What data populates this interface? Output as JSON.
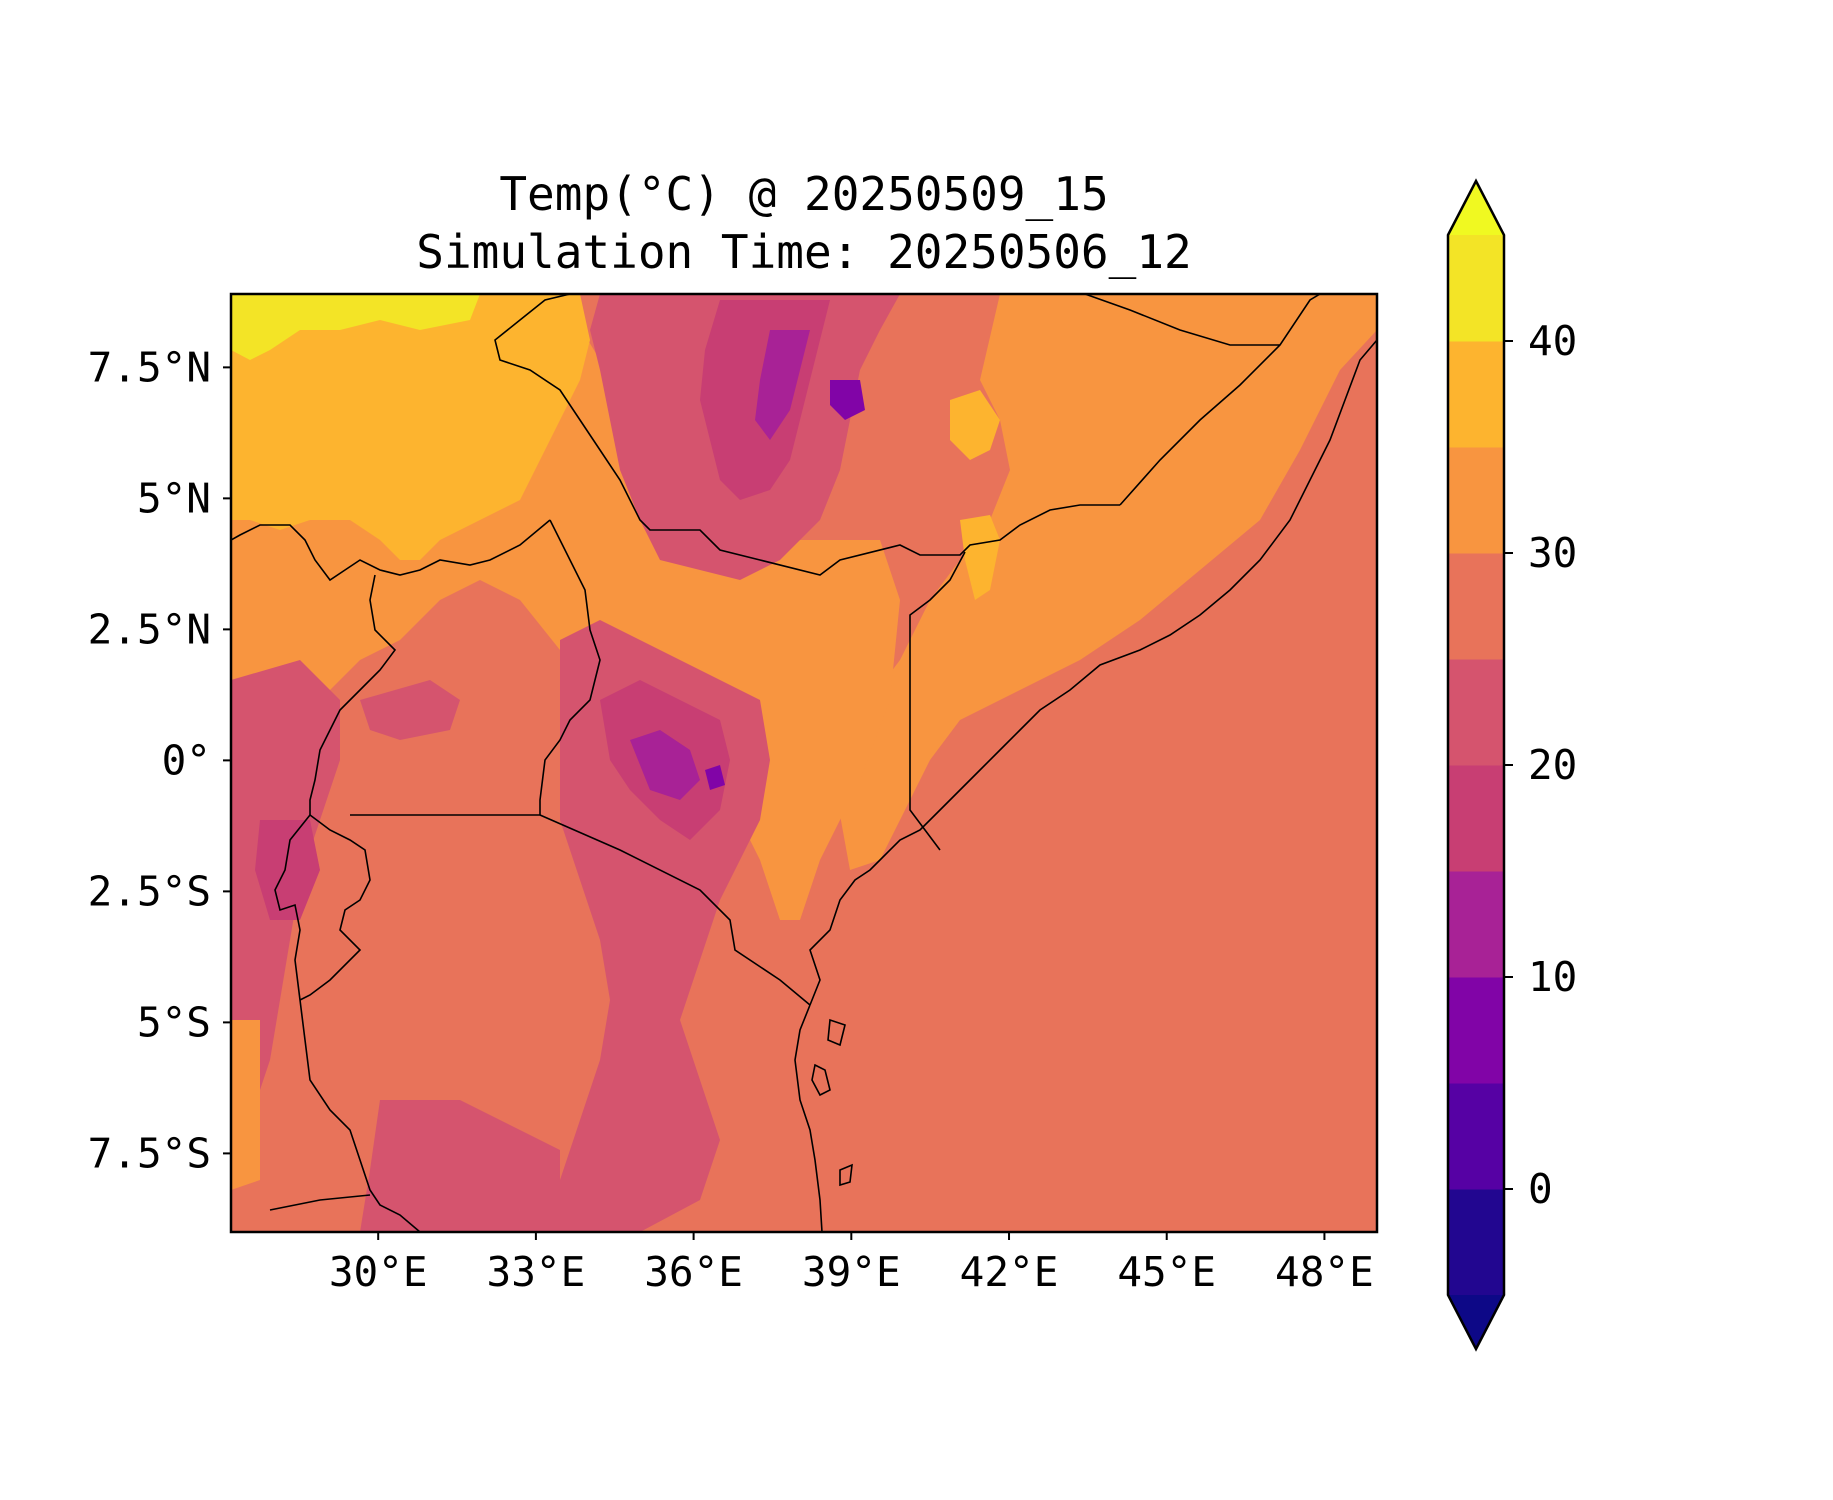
{
  "title": {
    "line1": "Temp(°C) @ 20250509_15",
    "line2": "Simulation Time: 20250506_12"
  },
  "map": {
    "lon_range": [
      27.2,
      49.0
    ],
    "lat_range": [
      -9.0,
      8.9
    ],
    "lon_ticks": [
      "30°E",
      "33°E",
      "36°E",
      "39°E",
      "42°E",
      "45°E",
      "48°E"
    ],
    "lat_ticks": [
      "7.5°N",
      "5°N",
      "2.5°N",
      "0°",
      "2.5°S",
      "5°S",
      "7.5°S"
    ],
    "lon_tick_values": [
      30,
      33,
      36,
      39,
      42,
      45,
      48
    ],
    "lat_tick_values": [
      7.5,
      5,
      2.5,
      0,
      -2.5,
      -5,
      -7.5
    ],
    "background_level_color": "#e8735a"
  },
  "colorbar": {
    "tick_labels": [
      "0",
      "10",
      "20",
      "30",
      "40"
    ],
    "tick_values": [
      0,
      10,
      20,
      30,
      40
    ],
    "range": [
      -5,
      45
    ],
    "extend": "both",
    "under_color": "#0d0887",
    "over_color": "#f0f921",
    "level_colors": [
      "#220690",
      "#5601a4",
      "#8104a7",
      "#a82296",
      "#c83e73",
      "#d5546e",
      "#e8735a",
      "#f89540",
      "#fdb42f",
      "#f3e426"
    ]
  }
}
